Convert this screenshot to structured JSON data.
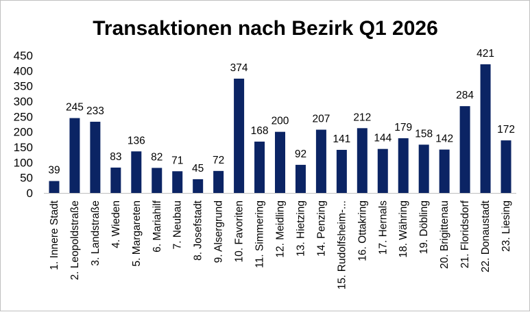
{
  "chart_data": {
    "type": "bar",
    "title": "Transaktionen nach Bezirk Q1 2026",
    "xlabel": "",
    "ylabel": "",
    "ylim": [
      0,
      450
    ],
    "yticks": [
      0,
      50,
      100,
      150,
      200,
      250,
      300,
      350,
      400,
      450
    ],
    "grid": false,
    "bar_color": "#0b2464",
    "categories": [
      "1. Innere Stadt",
      "2. Leopoldstraße",
      "3. Landstraße",
      "4. Wieden",
      "5. Margareten",
      "6. Mariahilf",
      "7. Neubau",
      "8. Josefstadt",
      "9. Alsergrund",
      "10. Favoriten",
      "11. Simmering",
      "12. Meidling",
      "13. Hietzing",
      "14. Penzing",
      "15. Rudolfsheim-...",
      "16. Ottakring",
      "17. Hernals",
      "18. Währing",
      "19. Döbling",
      "20. Brigittenau",
      "21. Floridsdorf",
      "22. Donaustadt",
      "23. Liesing"
    ],
    "values": [
      39,
      245,
      233,
      83,
      136,
      82,
      71,
      45,
      72,
      374,
      168,
      200,
      92,
      207,
      141,
      212,
      144,
      179,
      158,
      142,
      284,
      421,
      172
    ]
  }
}
